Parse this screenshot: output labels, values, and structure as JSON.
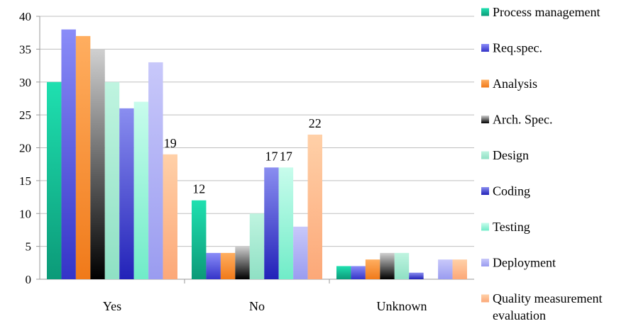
{
  "chart_data": {
    "type": "bar",
    "title": "",
    "xlabel": "",
    "ylabel": "",
    "ylim": [
      0,
      40
    ],
    "yticks": [
      0,
      5,
      10,
      15,
      20,
      25,
      30,
      35,
      40
    ],
    "grid": true,
    "legend_position": "right",
    "categories": [
      "Yes",
      "No",
      "Unknown"
    ],
    "series": [
      {
        "name": "Process management",
        "values": [
          30,
          12,
          2
        ],
        "colors": [
          "#1fe0b0",
          "#0c9a78"
        ]
      },
      {
        "name": "Req.spec.",
        "values": [
          38,
          4,
          2
        ],
        "colors": [
          "#8a8cf8",
          "#3434c8"
        ]
      },
      {
        "name": "Analysis",
        "values": [
          37,
          4,
          3
        ],
        "colors": [
          "#ffae60",
          "#f07a1a"
        ]
      },
      {
        "name": "Arch. Spec.",
        "values": [
          35,
          5,
          4
        ],
        "colors": [
          "#d0d0d0",
          "#000000"
        ]
      },
      {
        "name": "Design",
        "values": [
          30,
          10,
          4
        ],
        "colors": [
          "#bff4e0",
          "#8fe0c4"
        ]
      },
      {
        "name": "Coding",
        "values": [
          26,
          17,
          1
        ],
        "colors": [
          "#8a8ef0",
          "#2222b8"
        ]
      },
      {
        "name": "Testing",
        "values": [
          27,
          17,
          0
        ],
        "colors": [
          "#c8fcec",
          "#70ecc8"
        ]
      },
      {
        "name": "Deployment",
        "values": [
          33,
          8,
          3
        ],
        "colors": [
          "#c8c8fa",
          "#9a9cf0"
        ]
      },
      {
        "name": "Quality measurement evaluation",
        "legend_lines": [
          "Quality measurement",
          "evaluation"
        ],
        "values": [
          19,
          22,
          3
        ],
        "colors": [
          "#ffd0a8",
          "#fca878"
        ]
      }
    ],
    "data_labels": [
      {
        "series": 8,
        "category": 0,
        "text": "19"
      },
      {
        "series": 0,
        "category": 1,
        "text": "12"
      },
      {
        "series": 5,
        "category": 1,
        "text": "17"
      },
      {
        "series": 6,
        "category": 1,
        "text": "17"
      },
      {
        "series": 8,
        "category": 1,
        "text": "22"
      }
    ]
  }
}
